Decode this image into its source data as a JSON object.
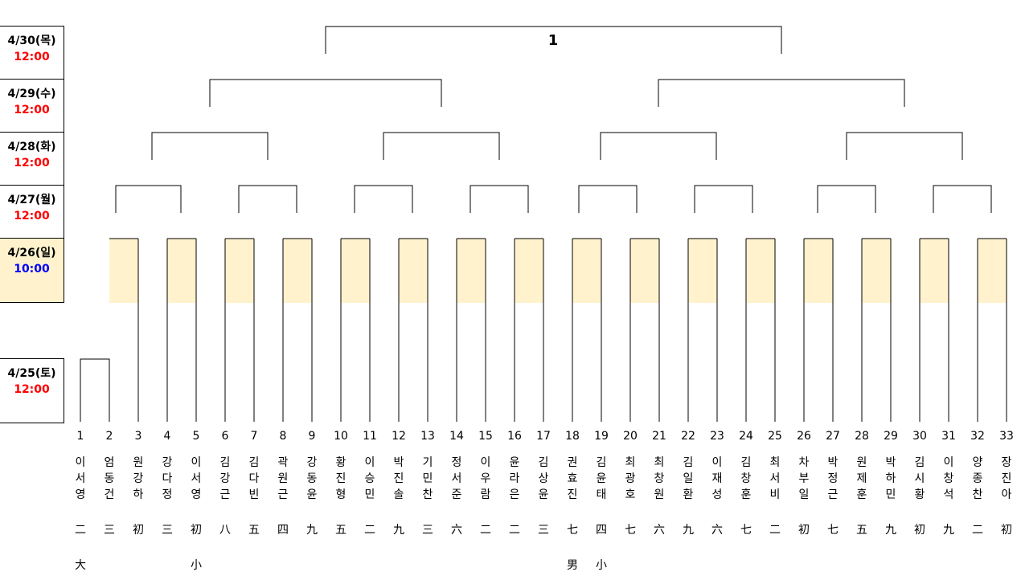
{
  "schedule": [
    {
      "date": "4/30(목)",
      "time": "12:00",
      "time_color": "#ff0000"
    },
    {
      "date": "4/29(수)",
      "time": "12:00",
      "time_color": "#ff0000"
    },
    {
      "date": "4/28(화)",
      "time": "12:00",
      "time_color": "#ff0000"
    },
    {
      "date": "4/27(월)",
      "time": "12:00",
      "time_color": "#ff0000"
    },
    {
      "date": "4/26(일)",
      "time": "10:00",
      "time_color": "#0000ff"
    },
    {
      "date": "4/25(토)",
      "time": "12:00",
      "time_color": "#ff0000"
    }
  ],
  "final_label": "1",
  "entrants": [
    {
      "num": "1",
      "name": [
        "이",
        "서",
        "영"
      ],
      "rank": "二",
      "group": "大"
    },
    {
      "num": "2",
      "name": [
        "엄",
        "동",
        "건"
      ],
      "rank": "三",
      "group": ""
    },
    {
      "num": "3",
      "name": [
        "원",
        "강",
        "하"
      ],
      "rank": "初",
      "group": ""
    },
    {
      "num": "4",
      "name": [
        "강",
        "다",
        "정"
      ],
      "rank": "三",
      "group": ""
    },
    {
      "num": "5",
      "name": [
        "이",
        "서",
        "영"
      ],
      "rank": "初",
      "group": "小"
    },
    {
      "num": "6",
      "name": [
        "김",
        "강",
        "근"
      ],
      "rank": "八",
      "group": ""
    },
    {
      "num": "7",
      "name": [
        "김",
        "다",
        "빈"
      ],
      "rank": "五",
      "group": ""
    },
    {
      "num": "8",
      "name": [
        "곽",
        "원",
        "근"
      ],
      "rank": "四",
      "group": ""
    },
    {
      "num": "9",
      "name": [
        "강",
        "동",
        "윤"
      ],
      "rank": "九",
      "group": ""
    },
    {
      "num": "10",
      "name": [
        "황",
        "진",
        "형"
      ],
      "rank": "五",
      "group": ""
    },
    {
      "num": "11",
      "name": [
        "이",
        "승",
        "민"
      ],
      "rank": "二",
      "group": ""
    },
    {
      "num": "12",
      "name": [
        "박",
        "진",
        "솔"
      ],
      "rank": "九",
      "group": ""
    },
    {
      "num": "13",
      "name": [
        "기",
        "민",
        "찬"
      ],
      "rank": "三",
      "group": ""
    },
    {
      "num": "14",
      "name": [
        "정",
        "서",
        "준"
      ],
      "rank": "六",
      "group": ""
    },
    {
      "num": "15",
      "name": [
        "이",
        "우",
        "람"
      ],
      "rank": "二",
      "group": ""
    },
    {
      "num": "16",
      "name": [
        "윤",
        "라",
        "은"
      ],
      "rank": "二",
      "group": ""
    },
    {
      "num": "17",
      "name": [
        "김",
        "상",
        "윤"
      ],
      "rank": "三",
      "group": ""
    },
    {
      "num": "18",
      "name": [
        "권",
        "효",
        "진"
      ],
      "rank": "七",
      "group": "男"
    },
    {
      "num": "19",
      "name": [
        "김",
        "윤",
        "태"
      ],
      "rank": "四",
      "group": "小"
    },
    {
      "num": "20",
      "name": [
        "최",
        "광",
        "호"
      ],
      "rank": "七",
      "group": ""
    },
    {
      "num": "21",
      "name": [
        "최",
        "창",
        "원"
      ],
      "rank": "六",
      "group": ""
    },
    {
      "num": "22",
      "name": [
        "김",
        "일",
        "환"
      ],
      "rank": "九",
      "group": ""
    },
    {
      "num": "23",
      "name": [
        "이",
        "재",
        "성"
      ],
      "rank": "六",
      "group": ""
    },
    {
      "num": "24",
      "name": [
        "김",
        "창",
        "훈"
      ],
      "rank": "七",
      "group": ""
    },
    {
      "num": "25",
      "name": [
        "최",
        "서",
        "비"
      ],
      "rank": "二",
      "group": ""
    },
    {
      "num": "26",
      "name": [
        "차",
        "부",
        "일"
      ],
      "rank": "初",
      "group": ""
    },
    {
      "num": "27",
      "name": [
        "박",
        "정",
        "근"
      ],
      "rank": "七",
      "group": ""
    },
    {
      "num": "28",
      "name": [
        "원",
        "제",
        "훈"
      ],
      "rank": "五",
      "group": ""
    },
    {
      "num": "29",
      "name": [
        "박",
        "하",
        "민"
      ],
      "rank": "九",
      "group": ""
    },
    {
      "num": "30",
      "name": [
        "김",
        "시",
        "황"
      ],
      "rank": "初",
      "group": ""
    },
    {
      "num": "31",
      "name": [
        "이",
        "창",
        "석"
      ],
      "rank": "九",
      "group": ""
    },
    {
      "num": "32",
      "name": [
        "양",
        "종",
        "찬"
      ],
      "rank": "二",
      "group": ""
    },
    {
      "num": "33",
      "name": [
        "장",
        "진",
        "아"
      ],
      "rank": "初",
      "group": ""
    }
  ],
  "colors": {
    "highlight": "#fff2cc",
    "line": "#000000"
  }
}
